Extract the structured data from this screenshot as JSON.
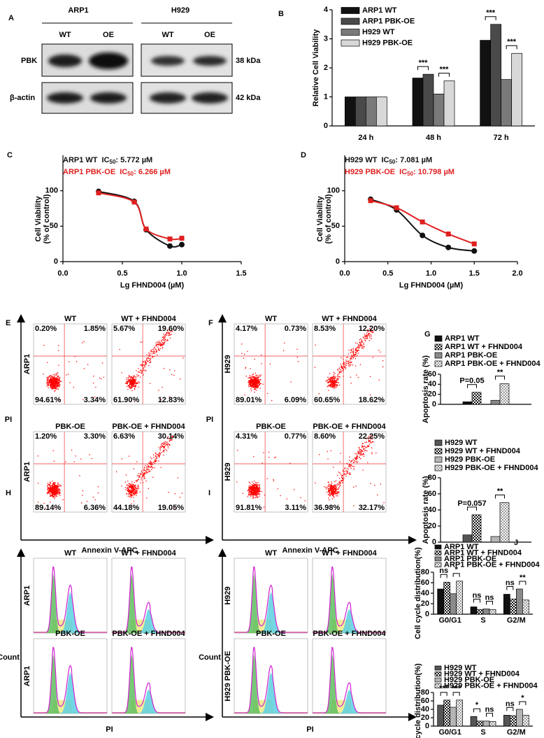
{
  "panel_labels": [
    "A",
    "B",
    "C",
    "D",
    "E",
    "F",
    "G",
    "H",
    "I",
    "J"
  ],
  "blot": {
    "groups": [
      "ARP1",
      "H929"
    ],
    "lanes": [
      "WT",
      "OE",
      "WT",
      "OE"
    ],
    "rows": [
      "PBK",
      "β-actin"
    ],
    "sizes": [
      "38 kDa",
      "42 kDa"
    ]
  },
  "chart_data": [
    {
      "type": "bar",
      "y_label": "Relative Cell Viability",
      "categories": [
        "24 h",
        "48 h",
        "72 h"
      ],
      "series": [
        {
          "name": "ARP1 WT",
          "color": "#111111",
          "values": [
            1,
            1.65,
            2.95
          ]
        },
        {
          "name": "ARP1 PBK-OE",
          "color": "#4a4a4a",
          "values": [
            1,
            1.78,
            3.5
          ]
        },
        {
          "name": "H929 WT",
          "color": "#7a7a7a",
          "values": [
            1,
            1.1,
            1.6
          ]
        },
        {
          "name": "H929 PBK-OE",
          "color": "#d8d8d8",
          "values": [
            1,
            1.55,
            2.5
          ]
        }
      ],
      "ylim": [
        0,
        4
      ],
      "yticks": [
        0,
        1,
        2,
        3,
        4
      ],
      "annotations": [
        "***",
        "***",
        "***",
        "***"
      ]
    },
    {
      "type": "line",
      "y_label": [
        "Cell Viability",
        "(% of control)"
      ],
      "x_label": "Lg FHND004 (µM)",
      "series": [
        {
          "name": "ARP1 WT",
          "ic_label": "IC",
          "ic_sub": "50",
          "ic_value": ": 5.772 µM",
          "color": "#111111",
          "marker": "circle",
          "x": [
            0.3,
            0.6,
            0.7,
            0.9,
            1.0
          ],
          "values": [
            99,
            85,
            45,
            22,
            24
          ]
        },
        {
          "name": "ARP1 PBK-OE",
          "ic_label": "IC",
          "ic_sub": "50",
          "ic_value": ": 6.266 µM",
          "color": "#e02020",
          "marker": "square",
          "x": [
            0.3,
            0.6,
            0.7,
            0.9,
            1.0
          ],
          "values": [
            97,
            84,
            46,
            32,
            33
          ]
        }
      ],
      "xlim": [
        0,
        1.5
      ],
      "xticks": [
        {
          "value": 0,
          "label": "0.0"
        },
        0.5,
        {
          "value": 1,
          "label": "1.0"
        },
        1.5
      ],
      "ylim": [
        0,
        150
      ],
      "yticks": [
        0,
        50,
        100
      ]
    },
    {
      "type": "line",
      "y_label": [
        "Cell Viability",
        "(% of control)"
      ],
      "x_label": "Lg FHND004 (µM)",
      "series": [
        {
          "name": "H929 WT",
          "ic_label": "IC",
          "ic_sub": "50",
          "ic_value": ": 7.081 µM",
          "color": "#111111",
          "marker": "circle",
          "x": [
            0.3,
            0.6,
            0.9,
            1.2,
            1.5
          ],
          "values": [
            88,
            73,
            37,
            20,
            15
          ]
        },
        {
          "name": "H929 PBK-OE",
          "ic_label": "IC",
          "ic_sub": "50",
          "ic_value": ": 10.798 µM",
          "color": "#e02020",
          "marker": "square",
          "x": [
            0.3,
            0.6,
            0.9,
            1.2,
            1.5
          ],
          "values": [
            86,
            76,
            56,
            39,
            25
          ]
        }
      ],
      "xlim": [
        0,
        2
      ],
      "xticks": [
        {
          "value": 0,
          "label": "0.0"
        },
        0.5,
        {
          "value": 1,
          "label": "1.0"
        },
        1.5,
        {
          "value": 2,
          "label": "2.0"
        }
      ],
      "ylim": [
        0,
        150
      ],
      "yticks": [
        0,
        50,
        100
      ]
    },
    {
      "type": "bar",
      "y_label": "Apoptosis rate (%)",
      "categories": [
        null
      ],
      "series": [
        {
          "name": "ARP1 WT",
          "color": "#111111",
          "values": [
            5
          ]
        },
        {
          "name": "ARP1 WT + FHND004",
          "color": "#111111",
          "pattern": "checker",
          "values": [
            24
          ]
        },
        {
          "name": "ARP1 PBK-OE",
          "color": "#8a8a8a",
          "values": [
            8
          ]
        },
        {
          "name": "ARP1 PBK-OE + FHND004",
          "color": "#8a8a8a",
          "pattern": "checker-light",
          "values": [
            41
          ]
        }
      ],
      "ylim": [
        0,
        60
      ],
      "yticks": [
        0,
        20,
        40,
        60
      ],
      "annotations": [
        "P=0.05",
        "**"
      ]
    },
    {
      "type": "bar",
      "y_label": "Apoptosis rate (%)",
      "categories": [
        null
      ],
      "series": [
        {
          "name": "H929 WT",
          "color": "#555555",
          "values": [
            9
          ]
        },
        {
          "name": "H929 WT + FHND004",
          "color": "#555555",
          "pattern": "checker",
          "values": [
            34
          ]
        },
        {
          "name": "H929 PBK-OE",
          "color": "#b5b5b5",
          "values": [
            7
          ]
        },
        {
          "name": "H929 PBK-OE + FHND004",
          "color": "#b5b5b5",
          "pattern": "checker-light",
          "values": [
            49
          ]
        }
      ],
      "ylim": [
        0,
        80
      ],
      "yticks": [
        0,
        20,
        40,
        60,
        80
      ],
      "annotations": [
        "P=0.057",
        "**"
      ]
    },
    {
      "type": "bar",
      "y_label": "Cell cycle distribution(%)",
      "categories": [
        "G0/G1",
        "S",
        "G2/M"
      ],
      "series": [
        {
          "name": "ARP1 WT",
          "color": "#111111",
          "values": [
            48,
            14,
            38
          ]
        },
        {
          "name": "ARP1 WT + FHND004",
          "color": "#111111",
          "pattern": "checker",
          "values": [
            61,
            9,
            29
          ]
        },
        {
          "name": "ARP1 PBK-OE",
          "color": "#8a8a8a",
          "values": [
            39,
            10,
            48
          ]
        },
        {
          "name": "ARP1 PBK-OE + FHND004",
          "color": "#8a8a8a",
          "pattern": "checker-light",
          "values": [
            63,
            9,
            27
          ]
        }
      ],
      "ylim": [
        0,
        80
      ],
      "yticks": [
        0,
        20,
        40,
        60,
        80
      ],
      "annotations": [
        "ns",
        "*",
        "ns",
        "ns",
        "ns",
        "**"
      ]
    },
    {
      "type": "bar",
      "y_label": "Cell cycle distribution(%)",
      "categories": [
        "G0/G1",
        "S",
        "G2/M"
      ],
      "series": [
        {
          "name": "H929 WT",
          "color": "#555555",
          "values": [
            50,
            23,
            26
          ]
        },
        {
          "name": "H929 WT + FHND004",
          "color": "#555555",
          "pattern": "checker",
          "values": [
            62,
            12,
            25
          ]
        },
        {
          "name": "H929 PBK-OE",
          "color": "#b5b5b5",
          "values": [
            45,
            12,
            40
          ]
        },
        {
          "name": "H929 PBK-OE + FHND004",
          "color": "#b5b5b5",
          "pattern": "checker-light",
          "values": [
            62,
            11,
            26
          ]
        }
      ],
      "ylim": [
        0,
        80
      ],
      "yticks": [
        0,
        20,
        40,
        60,
        80
      ],
      "annotations": [
        "***",
        "***",
        "*",
        "ns",
        "ns",
        "*"
      ]
    }
  ],
  "flow": [
    {
      "conditions": [
        "WT",
        "WT + FHND004",
        "PBK-OE",
        "PBK-OE + FHND004"
      ],
      "rows": [
        "ARP1",
        "ARP1"
      ],
      "y_label": "PI",
      "x_label": "Annexin V-APC",
      "quadrants": [
        [
          "0.20%",
          "1.85%",
          "94.61%",
          "3.34%"
        ],
        [
          "5.67%",
          "19.60%",
          "61.90%",
          "12.83%"
        ],
        [
          "1.20%",
          "3.30%",
          "89.14%",
          "6.36%"
        ],
        [
          "6.63%",
          "30.14%",
          "44.18%",
          "19.05%"
        ]
      ]
    },
    {
      "conditions": [
        "WT",
        "WT + FHND004",
        "PBK-OE",
        "PBK-OE + FHND004"
      ],
      "rows": [
        "H929",
        "H929"
      ],
      "y_label": "PI",
      "x_label": "Annexin V-APC",
      "quadrants": [
        [
          "4.17%",
          "0.73%",
          "89.01%",
          "6.09%"
        ],
        [
          "8.53%",
          "12.20%",
          "60.65%",
          "18.62%"
        ],
        [
          "4.31%",
          "0.77%",
          "91.81%",
          "3.11%"
        ],
        [
          "8.60%",
          "22.25%",
          "36.98%",
          "32.17%"
        ]
      ]
    }
  ],
  "cycle": [
    {
      "conditions": [
        "WT",
        "WT + FHND004",
        "PBK-OE",
        "PBK-OE + FHND004"
      ],
      "rows": [
        "ARP1",
        "ARP1"
      ],
      "y_label": "Count",
      "x_label": "PI"
    },
    {
      "conditions": [
        "WT",
        "WT + FHND004",
        "PBK-OE",
        "PBK-OE + FHND004"
      ],
      "rows": [
        "H929",
        "H929 PBK-OE"
      ],
      "y_label": "Count",
      "x_label": "PI"
    }
  ]
}
